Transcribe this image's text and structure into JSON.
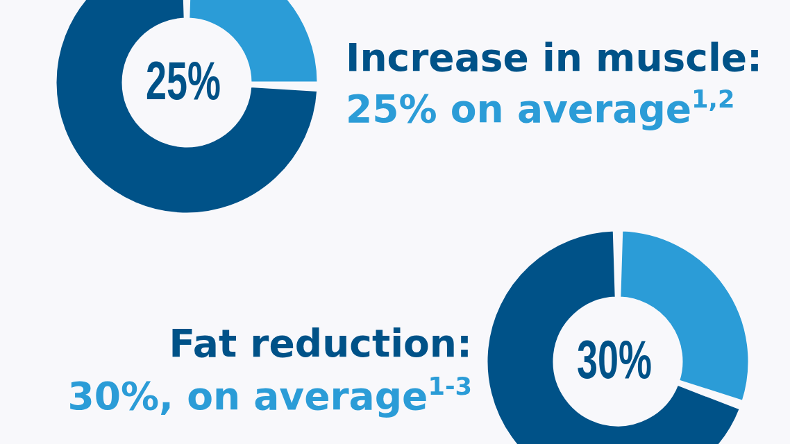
{
  "chart_data": [
    {
      "type": "donut",
      "title": "Increase in muscle:",
      "subtitle": "25% on average$^{1,2}$",
      "categories": [
        null,
        null
      ],
      "values": [
        25,
        75
      ],
      "colors": [
        "#2b9cd7",
        "#005288"
      ],
      "annotations": [
        "25%"
      ]
    },
    {
      "type": "donut",
      "title": "Fat reduction:",
      "subtitle": "30%, on average$^{1-3}$",
      "categories": [
        null,
        null
      ],
      "values": [
        30,
        70
      ],
      "colors": [
        "#2b9cd7",
        "#005288"
      ],
      "annotations": [
        "30%"
      ]
    }
  ]
}
